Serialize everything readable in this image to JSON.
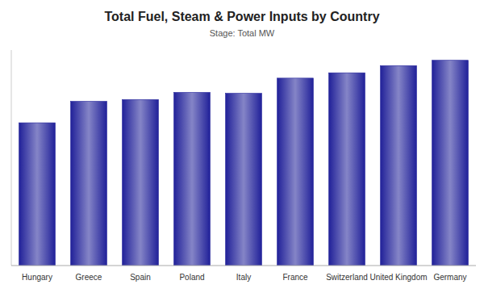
{
  "chart_data": {
    "type": "bar",
    "title": "Total Fuel, Steam & Power Inputs by Country",
    "subtitle": "Stage: Total MW",
    "categories": [
      "Hungary",
      "Greece",
      "Spain",
      "Poland",
      "Italy",
      "France",
      "Switzerland",
      "United Kingdom",
      "Germany"
    ],
    "values": [
      8.0,
      9.2,
      9.3,
      9.7,
      9.65,
      10.5,
      10.8,
      11.2,
      11.5
    ],
    "color": "#212199",
    "ylim": [
      0,
      12.075
    ],
    "grid": false,
    "tick_labels": "x"
  }
}
